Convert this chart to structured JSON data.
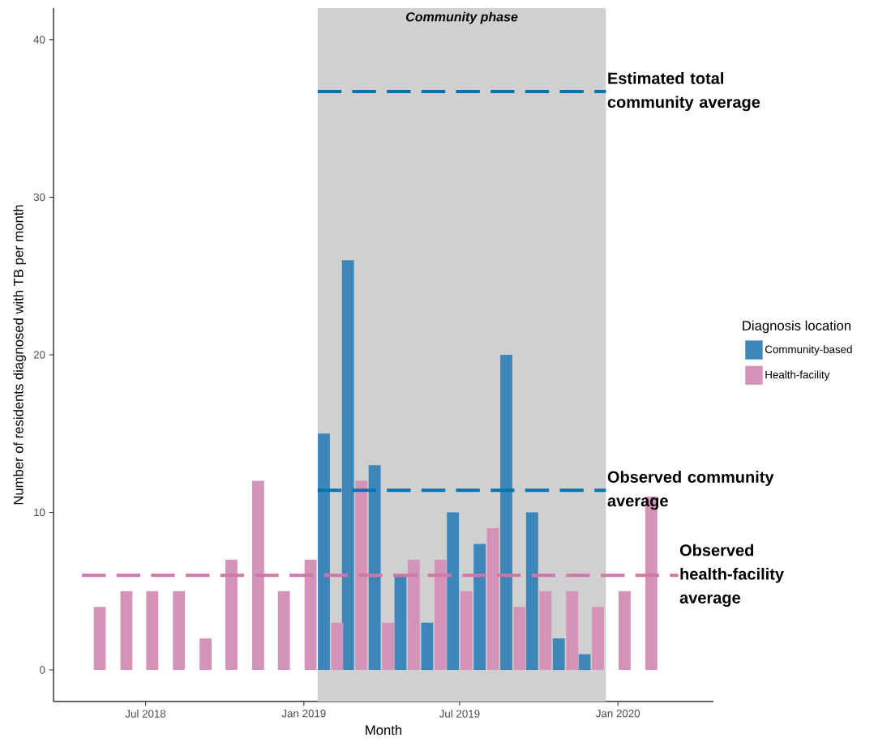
{
  "chart_data": {
    "type": "bar",
    "xlabel": "Month",
    "ylabel": "Number of residents diagnosed with TB per month",
    "legend_title": "Diagnosis location",
    "x": [
      "2018-05",
      "2018-06",
      "2018-07",
      "2018-08",
      "2018-09",
      "2018-10",
      "2018-11",
      "2018-12",
      "2019-01",
      "2019-02",
      "2019-03",
      "2019-04",
      "2019-05",
      "2019-06",
      "2019-07",
      "2019-08",
      "2019-09",
      "2019-10",
      "2019-11",
      "2019-12",
      "2020-01",
      "2020-02"
    ],
    "series": [
      {
        "name": "Community-based",
        "color": "#3c86b9",
        "values": [
          null,
          null,
          null,
          null,
          null,
          null,
          null,
          null,
          null,
          15,
          26,
          13,
          6,
          3,
          10,
          8,
          20,
          10,
          2,
          1,
          null,
          null
        ]
      },
      {
        "name": "Health-facility",
        "color": "#d494b8",
        "values": [
          4,
          5,
          5,
          5,
          2,
          7,
          12,
          5,
          7,
          3,
          12,
          3,
          7,
          7,
          5,
          9,
          4,
          5,
          5,
          4,
          5,
          11
        ]
      }
    ],
    "xlim": [
      "2018-03-16",
      "2020-04-21"
    ],
    "ylim": [
      -2,
      42
    ],
    "xticks": [
      {
        "value": "2018-07",
        "label": "Jul 2018"
      },
      {
        "value": "2019-01",
        "label": "Jan 2019"
      },
      {
        "value": "2019-07",
        "label": "Jul 2019"
      },
      {
        "value": "2020-01",
        "label": "Jan 2020"
      }
    ],
    "yticks": [
      0,
      10,
      20,
      30,
      40
    ],
    "bands": [
      {
        "axis": "x",
        "from": "2019-01-17",
        "to": "2019-12-18",
        "label": "Community phase",
        "color": "#d0d0d0"
      }
    ],
    "ref_lines": [
      {
        "axis": "y",
        "value": 36.7,
        "label": "Estimated total community average",
        "color": "#0072b2",
        "line_style": "dashed"
      },
      {
        "axis": "y",
        "value": 11.4,
        "label": "Observed community average",
        "color": "#0072b2",
        "line_style": "dashed"
      },
      {
        "axis": "y",
        "value": 6.0,
        "label": "Observed health-facility average",
        "color": "#cc79a7",
        "line_style": "dashed"
      }
    ],
    "legend": "right",
    "grid": false
  }
}
